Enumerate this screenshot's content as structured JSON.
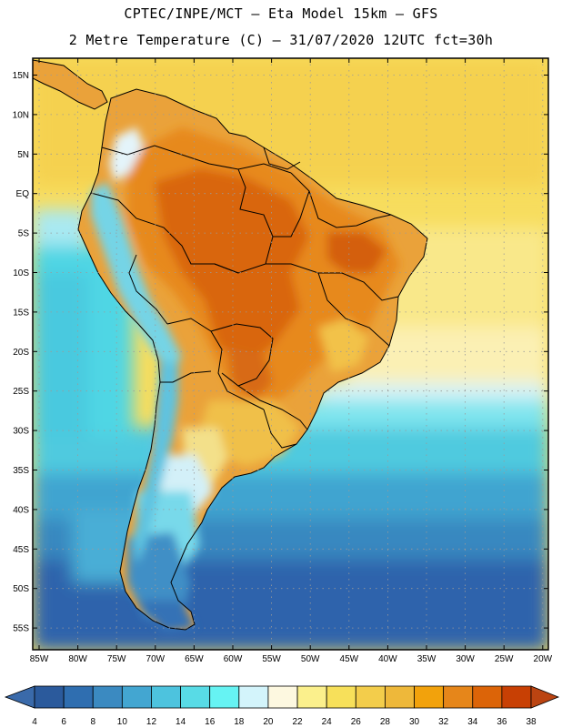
{
  "header": {
    "line1": "CPTEC/INPE/MCT –  Eta Model 15km – GFS",
    "line2": "2 Metre Temperature (C) – 31/07/2020 12UTC fct=30h"
  },
  "map": {
    "lat_labels": [
      "15N",
      "10N",
      "5N",
      "EQ",
      "5S",
      "10S",
      "15S",
      "20S",
      "25S",
      "30S",
      "35S",
      "40S",
      "45S",
      "50S",
      "55S"
    ],
    "lon_labels": [
      "85W",
      "80W",
      "75W",
      "70W",
      "65W",
      "60W",
      "55W",
      "50W",
      "45W",
      "40W",
      "35W",
      "30W",
      "25W",
      "20W"
    ]
  },
  "colorbar": {
    "ticks": [
      "4",
      "6",
      "8",
      "10",
      "12",
      "14",
      "16",
      "18",
      "20",
      "22",
      "24",
      "26",
      "28",
      "30",
      "32",
      "34",
      "36",
      "38"
    ],
    "colors": [
      "#2b5a9c",
      "#2f6eb0",
      "#3b8ac1",
      "#43a6d1",
      "#4dc3de",
      "#58dbe6",
      "#66f3f3",
      "#d3f4fb",
      "#fdf8e0",
      "#fbf08c",
      "#f7e05a",
      "#f3cd4b",
      "#eeb83a",
      "#f2a20c",
      "#e6861a",
      "#dc6408",
      "#c84004"
    ],
    "left_arrow": "#3a6aaa",
    "right_arrow": "#bb4411"
  }
}
